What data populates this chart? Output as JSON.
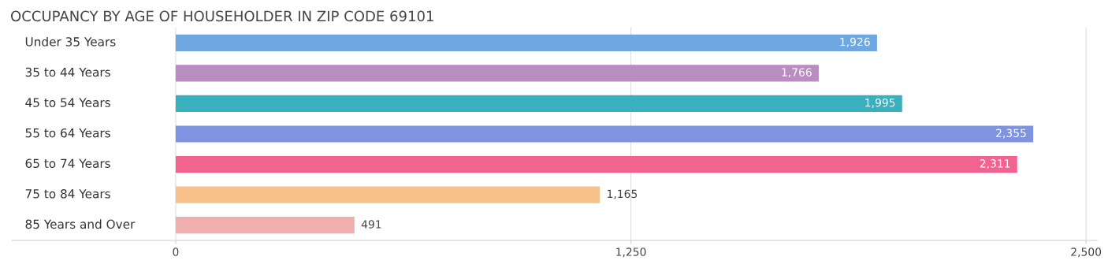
{
  "chart_data": {
    "type": "bar",
    "orientation": "horizontal",
    "title": "OCCUPANCY BY AGE OF HOUSEHOLDER IN ZIP CODE 69101",
    "categories": [
      "Under 35 Years",
      "35 to 44 Years",
      "45 to 54 Years",
      "55 to 64 Years",
      "65 to 74 Years",
      "75 to 84 Years",
      "85 Years and Over"
    ],
    "values": [
      1926,
      1766,
      1995,
      2355,
      2311,
      1165,
      491
    ],
    "value_labels": [
      "1,926",
      "1,766",
      "1,995",
      "2,355",
      "2,311",
      "1,165",
      "491"
    ],
    "colors": [
      "#6fa8e0",
      "#b98dc0",
      "#3aafbd",
      "#7f94e0",
      "#f0648f",
      "#f8c08a",
      "#f0aeae"
    ],
    "xlim": [
      -450,
      2530
    ],
    "xticks": [
      0,
      {
        "value": 1250,
        "label": "1,250"
      },
      {
        "value": 2500,
        "label": "2,500"
      }
    ],
    "grid": "x",
    "legend": false
  }
}
